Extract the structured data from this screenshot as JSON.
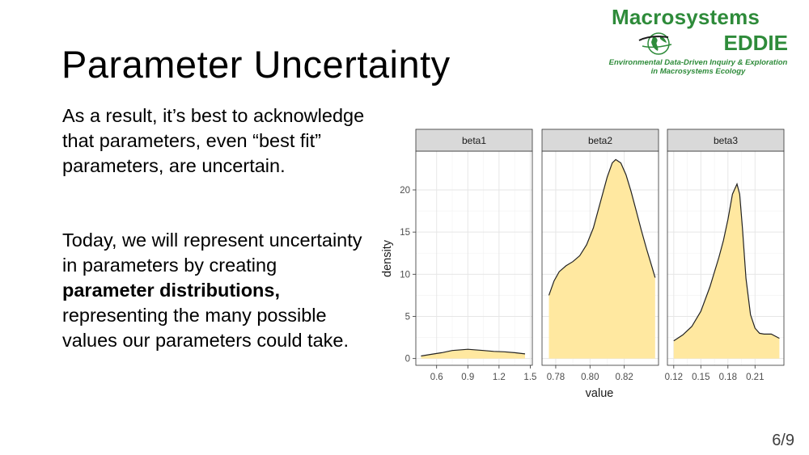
{
  "slide": {
    "title": "Parameter Uncertainty",
    "paragraph1": "As a result, it’s best to acknowledge that parameters, even “best fit” parameters, are uncertain.",
    "paragraph2_before": "Today, we will represent uncertainty in parameters by creating ",
    "paragraph2_bold": "parameter distributions,",
    "paragraph2_after": " representing the many possible values our parameters could take.",
    "page_number": "6/9"
  },
  "logo": {
    "line1": "Macrosystems",
    "line2": "EDDIE",
    "tagline1": "Environmental Data-Driven Inquiry & Exploration",
    "tagline2": "in Macrosystems Ecology",
    "color": "#2e8b3a"
  },
  "chart_data": {
    "type": "area",
    "xlabel": "value",
    "ylabel": "density",
    "ylim": [
      -0.8,
      24.6
    ],
    "yticks": [
      0,
      5,
      10,
      15,
      20
    ],
    "fill_color": "#ffe8a0",
    "line_color": "#222222",
    "strip_color": "#d9d9d9",
    "panel_border_color": "#333333",
    "grid": true,
    "panels": [
      {
        "name": "beta1",
        "xlim": [
          0.4,
          1.52
        ],
        "xticks": [
          0.6,
          0.9,
          1.2,
          1.5
        ],
        "xtick_labels": [
          "0.6",
          "0.9",
          "1.2",
          "1.5"
        ],
        "x": [
          0.45,
          0.55,
          0.65,
          0.75,
          0.85,
          0.9,
          0.95,
          1.05,
          1.15,
          1.25,
          1.35,
          1.45
        ],
        "y": [
          0.3,
          0.5,
          0.7,
          0.95,
          1.05,
          1.1,
          1.05,
          0.95,
          0.85,
          0.8,
          0.7,
          0.55
        ]
      },
      {
        "name": "beta2",
        "xlim": [
          0.772,
          0.84
        ],
        "xticks": [
          0.78,
          0.8,
          0.82
        ],
        "xtick_labels": [
          "0.78",
          "0.80",
          "0.82"
        ],
        "x": [
          0.776,
          0.779,
          0.782,
          0.786,
          0.79,
          0.794,
          0.798,
          0.802,
          0.806,
          0.81,
          0.813,
          0.815,
          0.818,
          0.821,
          0.824,
          0.827,
          0.83,
          0.833,
          0.836,
          0.838
        ],
        "y": [
          7.5,
          9.2,
          10.3,
          11.0,
          11.5,
          12.2,
          13.5,
          15.5,
          18.5,
          21.5,
          23.2,
          23.6,
          23.2,
          21.8,
          19.8,
          17.5,
          15.2,
          13.0,
          11.0,
          9.6
        ]
      },
      {
        "name": "beta3",
        "xlim": [
          0.113,
          0.242
        ],
        "xticks": [
          0.12,
          0.15,
          0.18,
          0.21
        ],
        "xtick_labels": [
          "0.12",
          "0.15",
          "0.18",
          "0.21"
        ],
        "x": [
          0.12,
          0.13,
          0.14,
          0.15,
          0.16,
          0.17,
          0.175,
          0.18,
          0.185,
          0.19,
          0.193,
          0.196,
          0.2,
          0.205,
          0.21,
          0.215,
          0.22,
          0.228,
          0.237
        ],
        "y": [
          2.1,
          2.8,
          3.8,
          5.6,
          8.5,
          12.0,
          14.0,
          16.5,
          19.5,
          20.7,
          19.5,
          15.5,
          9.5,
          5.2,
          3.6,
          3.0,
          2.9,
          2.9,
          2.4
        ]
      }
    ]
  }
}
